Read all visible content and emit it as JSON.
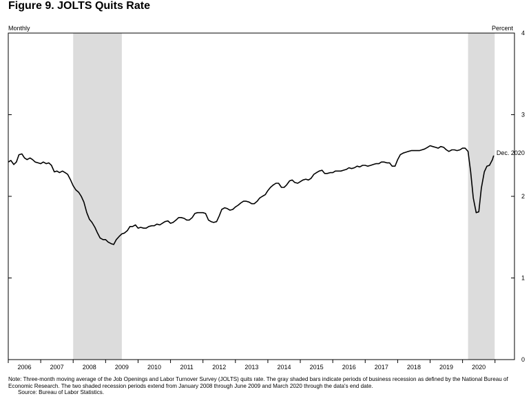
{
  "figure": {
    "title": "Figure 9. JOLTS Quits Rate",
    "note": "Note: Three-month moving average of the Job Openings and Labor Turnover Survey (JOLTS) quits rate. The gray shaded bars indicate periods of business recession as defined by the National Bureau of Economic Research. The two shaded recession periods extend from January 2008 through June 2009 and March 2020 through the data's end date.",
    "source": "Source: Bureau of Labor Statistics."
  },
  "colors": {
    "line": "#000000",
    "recession": "#dcdcdc",
    "axis": "#000000"
  },
  "chart_data": {
    "type": "line",
    "left_label": "Monthly",
    "right_label": "Percent",
    "ylim": [
      0,
      4
    ],
    "yticks": [
      0,
      1,
      2,
      3,
      4
    ],
    "y_axis_side": "right",
    "x_range": [
      2006.0,
      2021.6
    ],
    "year_labels": [
      "2006",
      "2007",
      "2008",
      "2009",
      "2010",
      "2011",
      "2012",
      "2013",
      "2014",
      "2015",
      "2016",
      "2017",
      "2018",
      "2019",
      "2020"
    ],
    "recessions": [
      {
        "start": 2008.0,
        "end": 2009.5
      },
      {
        "start": 2020.17,
        "end": 2020.99
      }
    ],
    "annotation": {
      "label": "Dec. 2020",
      "x": 2020.96,
      "y": 2.5
    },
    "series": [
      {
        "x": [
          2006.0,
          2006.08,
          2006.17,
          2006.25,
          2006.33,
          2006.42,
          2006.5,
          2006.58,
          2006.67,
          2006.75,
          2006.83,
          2006.92,
          2007.0,
          2007.08,
          2007.17,
          2007.25,
          2007.33,
          2007.42,
          2007.5,
          2007.58,
          2007.67,
          2007.75,
          2007.83,
          2007.92,
          2008.0,
          2008.08,
          2008.17,
          2008.25,
          2008.33,
          2008.42,
          2008.5,
          2008.58,
          2008.67,
          2008.75,
          2008.83,
          2008.92,
          2009.0,
          2009.08,
          2009.17,
          2009.25,
          2009.33,
          2009.42,
          2009.5,
          2009.58,
          2009.67,
          2009.75,
          2009.83,
          2009.92,
          2010.0,
          2010.08,
          2010.17,
          2010.25,
          2010.33,
          2010.42,
          2010.5,
          2010.58,
          2010.67,
          2010.75,
          2010.83,
          2010.92,
          2011.0,
          2011.08,
          2011.17,
          2011.25,
          2011.33,
          2011.42,
          2011.5,
          2011.58,
          2011.67,
          2011.75,
          2011.83,
          2011.92,
          2012.0,
          2012.08,
          2012.17,
          2012.25,
          2012.33,
          2012.42,
          2012.5,
          2012.58,
          2012.67,
          2012.75,
          2012.83,
          2012.92,
          2013.0,
          2013.08,
          2013.17,
          2013.25,
          2013.33,
          2013.42,
          2013.5,
          2013.58,
          2013.67,
          2013.75,
          2013.83,
          2013.92,
          2014.0,
          2014.08,
          2014.17,
          2014.25,
          2014.33,
          2014.42,
          2014.5,
          2014.58,
          2014.67,
          2014.75,
          2014.83,
          2014.92,
          2015.0,
          2015.08,
          2015.17,
          2015.25,
          2015.33,
          2015.42,
          2015.5,
          2015.58,
          2015.67,
          2015.75,
          2015.83,
          2015.92,
          2016.0,
          2016.08,
          2016.17,
          2016.25,
          2016.33,
          2016.42,
          2016.5,
          2016.58,
          2016.67,
          2016.75,
          2016.83,
          2016.92,
          2017.0,
          2017.08,
          2017.17,
          2017.25,
          2017.33,
          2017.42,
          2017.5,
          2017.58,
          2017.67,
          2017.75,
          2017.83,
          2017.92,
          2018.0,
          2018.08,
          2018.17,
          2018.25,
          2018.33,
          2018.42,
          2018.5,
          2018.58,
          2018.67,
          2018.75,
          2018.83,
          2018.92,
          2019.0,
          2019.08,
          2019.17,
          2019.25,
          2019.33,
          2019.42,
          2019.5,
          2019.58,
          2019.67,
          2019.75,
          2019.83,
          2019.92,
          2020.0,
          2020.08,
          2020.17,
          2020.25,
          2020.33,
          2020.42,
          2020.5,
          2020.58,
          2020.67,
          2020.75,
          2020.83,
          2020.92,
          2020.96
        ],
        "y": [
          2.42,
          2.44,
          2.39,
          2.42,
          2.51,
          2.52,
          2.47,
          2.45,
          2.47,
          2.45,
          2.42,
          2.41,
          2.4,
          2.42,
          2.4,
          2.41,
          2.38,
          2.3,
          2.31,
          2.29,
          2.31,
          2.29,
          2.27,
          2.2,
          2.13,
          2.08,
          2.05,
          2.0,
          1.93,
          1.8,
          1.72,
          1.68,
          1.62,
          1.55,
          1.49,
          1.47,
          1.47,
          1.44,
          1.42,
          1.41,
          1.47,
          1.51,
          1.54,
          1.55,
          1.58,
          1.63,
          1.63,
          1.65,
          1.61,
          1.62,
          1.61,
          1.61,
          1.63,
          1.64,
          1.64,
          1.66,
          1.65,
          1.67,
          1.69,
          1.7,
          1.67,
          1.68,
          1.71,
          1.74,
          1.74,
          1.73,
          1.71,
          1.71,
          1.74,
          1.79,
          1.8,
          1.8,
          1.8,
          1.79,
          1.71,
          1.69,
          1.68,
          1.69,
          1.76,
          1.84,
          1.86,
          1.85,
          1.83,
          1.84,
          1.87,
          1.89,
          1.92,
          1.94,
          1.94,
          1.93,
          1.91,
          1.91,
          1.94,
          1.98,
          2.0,
          2.02,
          2.07,
          2.11,
          2.14,
          2.16,
          2.16,
          2.11,
          2.11,
          2.14,
          2.19,
          2.2,
          2.17,
          2.16,
          2.18,
          2.2,
          2.21,
          2.2,
          2.22,
          2.27,
          2.29,
          2.31,
          2.32,
          2.28,
          2.28,
          2.29,
          2.29,
          2.31,
          2.31,
          2.31,
          2.32,
          2.33,
          2.35,
          2.34,
          2.35,
          2.37,
          2.36,
          2.38,
          2.38,
          2.37,
          2.38,
          2.39,
          2.4,
          2.4,
          2.42,
          2.42,
          2.41,
          2.41,
          2.37,
          2.37,
          2.45,
          2.51,
          2.53,
          2.54,
          2.55,
          2.56,
          2.56,
          2.56,
          2.56,
          2.57,
          2.58,
          2.6,
          2.62,
          2.61,
          2.6,
          2.59,
          2.61,
          2.6,
          2.57,
          2.55,
          2.57,
          2.57,
          2.56,
          2.57,
          2.59,
          2.59,
          2.55,
          2.3,
          1.98,
          1.8,
          1.81,
          2.1,
          2.3,
          2.37,
          2.38,
          2.45,
          2.5
        ]
      }
    ]
  }
}
